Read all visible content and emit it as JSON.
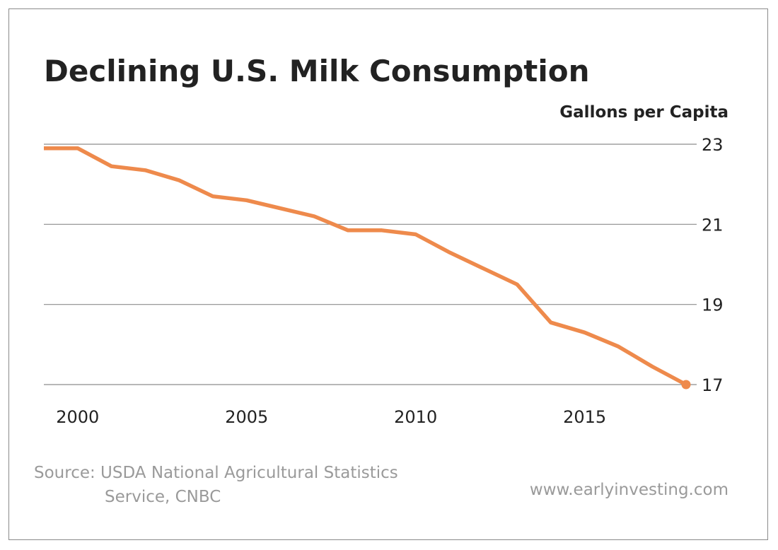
{
  "chart_data": {
    "type": "line",
    "title": "Declining U.S. Milk Consumption",
    "ylabel": "Gallons per Capita",
    "xlabel": "",
    "x": [
      1999,
      2000,
      2001,
      2002,
      2003,
      2004,
      2005,
      2006,
      2007,
      2008,
      2009,
      2010,
      2011,
      2012,
      2013,
      2014,
      2015,
      2016,
      2017,
      2018
    ],
    "series": [
      {
        "values": [
          22.9,
          22.9,
          22.45,
          22.35,
          22.1,
          21.7,
          21.6,
          21.4,
          21.2,
          20.85,
          20.85,
          20.75,
          20.3,
          19.9,
          19.5,
          18.55,
          18.3,
          17.95,
          17.45,
          17.0
        ]
      }
    ],
    "xticks": [
      "2000",
      "2005",
      "2010",
      "2015"
    ],
    "yticks": [
      "23",
      "21",
      "19",
      "17"
    ],
    "ylim": [
      17,
      23
    ],
    "xlim": [
      1999,
      2018
    ],
    "grid": "horizontal",
    "legend": "none",
    "color": "#ee8a4c"
  },
  "footer": {
    "source_line1": "Source: USDA National Agricultural Statistics",
    "source_line2": "Service, CNBC",
    "website": "www.earlyinvesting.com"
  }
}
